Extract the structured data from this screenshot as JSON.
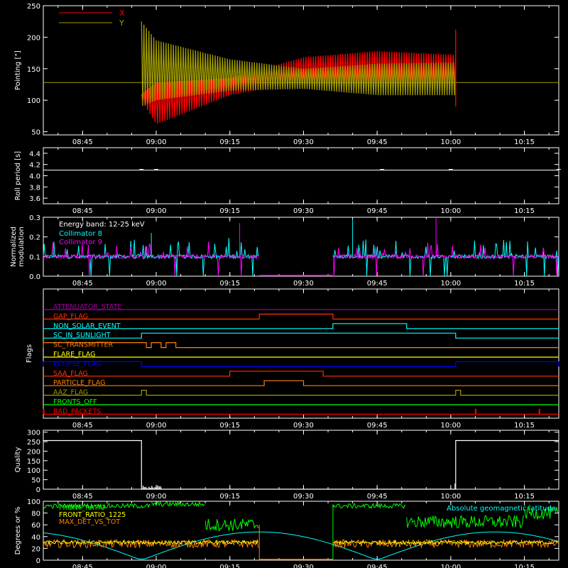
{
  "time_ticks": [
    "08:45",
    "09:00",
    "09:15",
    "09:30",
    "09:45",
    "10:00",
    "10:15"
  ],
  "colors": {
    "background": "#000000",
    "axis": "#ffffff",
    "red": "#ff0000",
    "olive": "#a09c00",
    "cyan": "#00ffff",
    "magenta": "#ff00ff",
    "green": "#00ff00",
    "orange": "#ff8000",
    "yellow": "#ffff00",
    "blue": "#0000ff",
    "purple": "#a000a0"
  },
  "chart_data": [
    {
      "id": "pointing",
      "type": "line",
      "ylabel": "Pointing [\"]",
      "y_ticks": [
        "50",
        "100",
        "150",
        "200",
        "250"
      ],
      "ylim": [
        45,
        250
      ],
      "x_range": [
        "08:37",
        "10:22"
      ],
      "series": [
        {
          "name": "X",
          "color": "#ff0000",
          "baseline": 128,
          "envelope": [
            [
              "08:57",
              100,
              110
            ],
            [
              "09:00",
              62,
              128
            ],
            [
              "09:15",
              108,
              135
            ],
            [
              "09:30",
              130,
              168
            ],
            [
              "09:45",
              128,
              178
            ],
            [
              "10:01",
              128,
              172
            ]
          ]
        },
        {
          "name": "Y",
          "color": "#a09c00",
          "baseline": 128,
          "envelope": [
            [
              "08:57",
              90,
              225
            ],
            [
              "09:00",
              100,
              195
            ],
            [
              "09:15",
              115,
              165
            ],
            [
              "09:30",
              118,
              150
            ],
            [
              "09:45",
              108,
              158
            ],
            [
              "10:01",
              108,
              160
            ]
          ]
        }
      ],
      "spike": {
        "time": "10:01",
        "value": 212
      }
    },
    {
      "id": "roll-period",
      "type": "line",
      "ylabel": "Roll period [s]",
      "y_ticks": [
        "3.6",
        "3.8",
        "4.0",
        "4.2",
        "4.4"
      ],
      "ylim": [
        3.5,
        4.5
      ],
      "value": 4.1
    },
    {
      "id": "modulation",
      "type": "line",
      "ylabel": "Normalized modulation",
      "y_ticks": [
        "0.0",
        "0.1",
        "0.2",
        "0.3"
      ],
      "ylim": [
        0.0,
        0.3
      ],
      "annotation": "Energy band: 12-25 keV",
      "series": [
        {
          "name": "Collimator 8",
          "color": "#00ffff"
        },
        {
          "name": "Collimator 9",
          "color": "#ff00ff"
        }
      ],
      "gap": [
        "09:21",
        "09:36"
      ],
      "typical_value": 0.1
    },
    {
      "id": "flags",
      "type": "line",
      "ylabel": "Flags",
      "flags": [
        {
          "name": "ATTENUATOR_STATE",
          "color": "#a000a0",
          "high": []
        },
        {
          "name": "GAP_FLAG",
          "color": "#ff3000",
          "high": [
            [
              "09:21",
              "09:36"
            ]
          ]
        },
        {
          "name": "NON_SOLAR_EVENT",
          "color": "#00ffff",
          "high": [
            [
              "09:36",
              "09:51"
            ]
          ]
        },
        {
          "name": "SC_IN_SUNLIGHT",
          "color": "#00ffff",
          "high": [
            [
              "08:57",
              "10:01"
            ]
          ]
        },
        {
          "name": "SC_TRANSMITTER",
          "color": "#ff8000",
          "high": [
            [
              "08:37",
              "08:58"
            ],
            [
              "08:59",
              "09:01"
            ],
            [
              "09:02",
              "09:04"
            ]
          ]
        },
        {
          "name": "FLARE_FLAG",
          "color": "#ffff00",
          "high": []
        },
        {
          "name": "ECLIPSE_FLAG",
          "color": "#0000ff",
          "high": [
            [
              "08:37",
              "08:57"
            ],
            [
              "10:01",
              "10:22"
            ]
          ]
        },
        {
          "name": "SAA_FLAG",
          "color": "#ff3000",
          "high": [
            [
              "09:15",
              "09:34"
            ]
          ]
        },
        {
          "name": "PARTICLE_FLAG",
          "color": "#ff8000",
          "high": [
            [
              "09:22",
              "09:30"
            ]
          ]
        },
        {
          "name": "AAZ_FLAG",
          "color": "#a09c00",
          "high": [
            [
              "08:57",
              "08:58"
            ],
            [
              "10:01",
              "10:02"
            ]
          ]
        },
        {
          "name": "FRONTS_OFF",
          "color": "#00ff00",
          "high": []
        },
        {
          "name": "BAD_PACKETS",
          "color": "#ff0000",
          "high": [
            [
              "08:37",
              "08:37"
            ],
            [
              "10:05",
              "10:05"
            ],
            [
              "10:18",
              "10:18"
            ]
          ]
        }
      ]
    },
    {
      "id": "quality",
      "type": "line",
      "ylabel": "Quality",
      "y_ticks": [
        "0",
        "50",
        "100",
        "150",
        "200",
        "250",
        "300"
      ],
      "ylim": [
        0,
        310
      ],
      "high_value": 256,
      "high_ranges": [
        [
          "08:37",
          "08:57"
        ],
        [
          "10:01",
          "10:22"
        ]
      ]
    },
    {
      "id": "ratios",
      "type": "line",
      "ylabel": "Degrees or %",
      "y_ticks": [
        "0",
        "20",
        "40",
        "60",
        "80",
        "100"
      ],
      "ylim": [
        0,
        100
      ],
      "annotation": "Absolute geomagnetic latitude",
      "series": [
        {
          "name": "FRONT_RATIO",
          "color": "#00ff00",
          "levels": [
            [
              "08:37",
              "08:59",
              92
            ],
            [
              "08:59",
              "09:10",
              95
            ],
            [
              "09:10",
              "09:21",
              60
            ],
            [
              "09:36",
              "09:51",
              92
            ],
            [
              "09:51",
              "10:15",
              65
            ],
            [
              "10:15",
              "10:22",
              80
            ]
          ]
        },
        {
          "name": "FRONT_RATIO_1225",
          "color": "#ffff00",
          "level": 30
        },
        {
          "name": "MAX_DET_VS_TOT",
          "color": "#ff8000",
          "level": 28
        },
        {
          "name": "Absolute geomagnetic latitude",
          "color": "#00ffff",
          "amplitude": 48,
          "period_minutes": 48
        }
      ],
      "gap": [
        "09:21",
        "09:36"
      ]
    }
  ]
}
